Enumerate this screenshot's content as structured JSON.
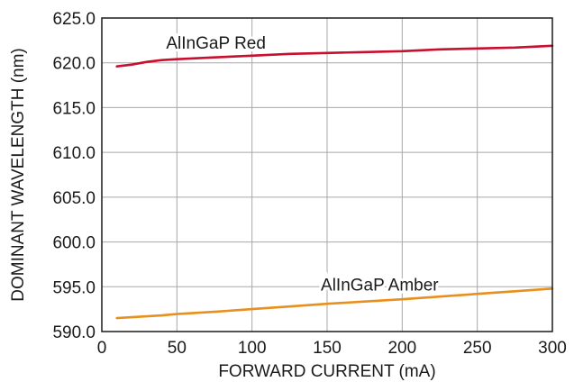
{
  "chart_data": {
    "type": "line",
    "xlabel": "FORWARD CURRENT (mA)",
    "ylabel": "DOMINANT WAVELENGTH (nm)",
    "xlim": [
      0,
      300
    ],
    "ylim": [
      590,
      625
    ],
    "xticks": [
      0,
      50,
      100,
      150,
      200,
      250,
      300
    ],
    "xtick_labels": [
      "0",
      "50",
      "100",
      "150",
      "200",
      "250",
      "300"
    ],
    "yticks": [
      590,
      595,
      600,
      605,
      610,
      615,
      620,
      625
    ],
    "ytick_labels": [
      "590.0",
      "595.0",
      "600.0",
      "605.0",
      "610.0",
      "615.0",
      "620.0",
      "625.0"
    ],
    "grid": true,
    "series": [
      {
        "name": "AlInGaP Red",
        "color": "#c8102e",
        "x": [
          10,
          20,
          30,
          40,
          50,
          75,
          100,
          125,
          150,
          175,
          200,
          225,
          250,
          275,
          300
        ],
        "y": [
          619.6,
          619.8,
          620.1,
          620.3,
          620.4,
          620.6,
          620.8,
          621.0,
          621.1,
          621.2,
          621.3,
          621.5,
          621.6,
          621.7,
          621.9
        ]
      },
      {
        "name": "AlInGaP Amber",
        "color": "#e8901e",
        "x": [
          10,
          20,
          30,
          40,
          50,
          75,
          100,
          125,
          150,
          175,
          200,
          225,
          250,
          275,
          300
        ],
        "y": [
          591.5,
          591.6,
          591.7,
          591.8,
          591.95,
          592.2,
          592.5,
          592.8,
          593.1,
          593.35,
          593.6,
          593.9,
          594.2,
          594.5,
          594.8
        ]
      }
    ]
  }
}
